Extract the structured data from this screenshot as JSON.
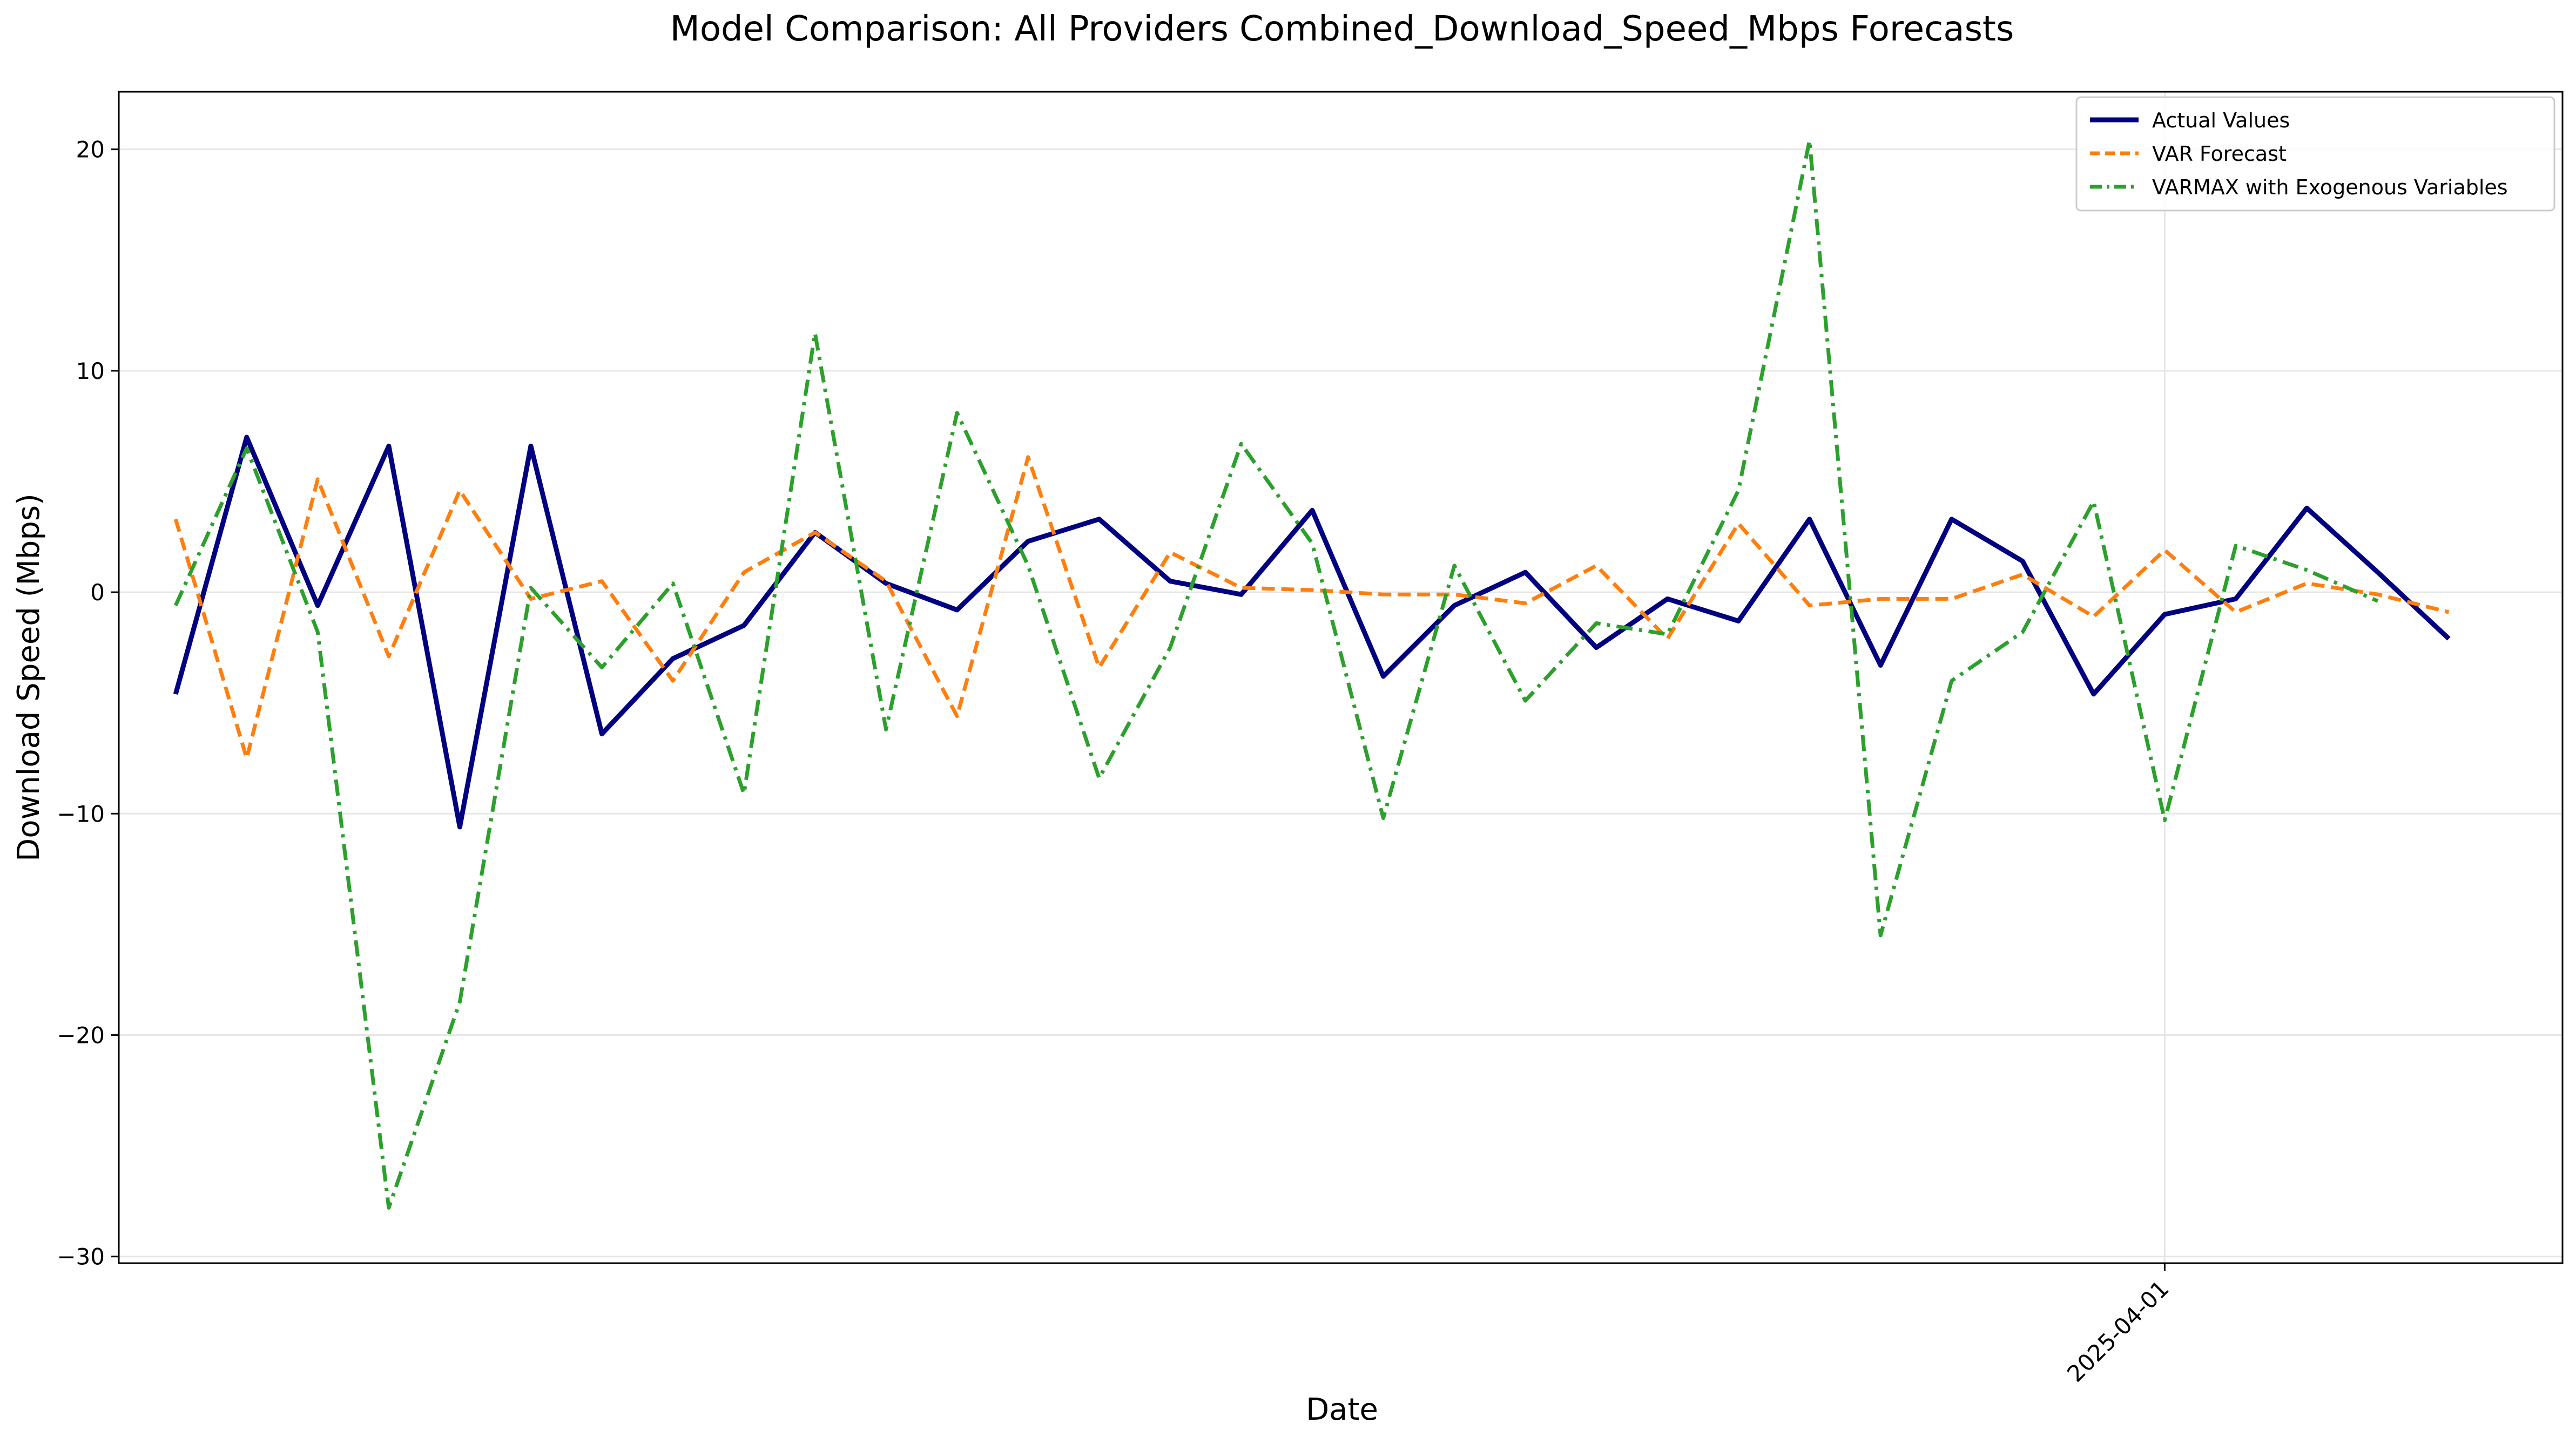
{
  "chart_data": {
    "type": "line",
    "title": "Model Comparison: All Providers Combined_Download_Speed_Mbps Forecasts",
    "xlabel": "Date",
    "ylabel": "Download Speed (Mbps)",
    "ylim": [
      -30.3,
      22.6
    ],
    "yticks": [
      20,
      10,
      0,
      -10,
      -20,
      -30
    ],
    "ytick_labels": [
      "20",
      "10",
      "0",
      "−10",
      "−20",
      "−30"
    ],
    "xlim_index": [
      -0.8,
      33.6
    ],
    "xticks": [
      {
        "index": 28,
        "label": "2025-04-01"
      }
    ],
    "grid": true,
    "legend_position": "upper right",
    "series": [
      {
        "name": "Actual Values",
        "color": "#000080",
        "style": "solid",
        "values": [
          -4.6,
          7.0,
          -0.6,
          6.6,
          -10.6,
          6.6,
          -6.4,
          -3.0,
          -1.5,
          2.7,
          0.4,
          -0.8,
          2.3,
          3.3,
          0.5,
          -0.1,
          3.7,
          -3.8,
          -0.6,
          0.9,
          -2.5,
          -0.3,
          -1.3,
          3.3,
          -3.3,
          3.3,
          1.4,
          -4.6,
          -1.0,
          -0.3,
          3.8,
          0.9,
          -2.1
        ]
      },
      {
        "name": "VAR Forecast",
        "color": "#ff7f0e",
        "style": "dashed",
        "values": [
          3.3,
          -7.5,
          5.1,
          -2.9,
          4.6,
          -0.3,
          0.5,
          -4.0,
          0.9,
          2.7,
          0.5,
          -5.6,
          6.1,
          -3.4,
          1.8,
          0.2,
          0.1,
          -0.1,
          -0.1,
          -0.5,
          1.2,
          -2.1,
          3.1,
          -0.6,
          -0.3,
          -0.3,
          0.8,
          -1.1,
          1.9,
          -0.9,
          0.4,
          -0.1,
          -0.9
        ]
      },
      {
        "name": "VARMAX with Exogenous Variables",
        "color": "#2ca02c",
        "style": "dashdot",
        "values": [
          -0.6,
          6.5,
          -1.8,
          -27.8,
          -18.5,
          0.2,
          -3.4,
          0.4,
          -9.1,
          11.7,
          -6.2,
          8.1,
          1.2,
          -8.4,
          -2.5,
          6.7,
          2.2,
          -10.2,
          1.2,
          -4.9,
          -1.4,
          -1.9,
          4.6,
          20.4,
          -15.5,
          -4.0,
          -1.8,
          4.1,
          -10.3,
          2.1,
          1.0,
          -0.4
        ]
      }
    ]
  }
}
